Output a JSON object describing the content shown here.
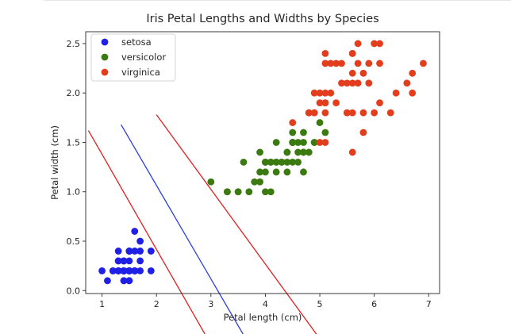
{
  "chart_data": {
    "type": "scatter",
    "title": "Iris Petal Lengths and Widths by Species",
    "xlabel": "Petal length (cm)",
    "ylabel": "Petal width (cm)",
    "xlim": [
      0.7,
      7.2
    ],
    "ylim": [
      -0.03,
      2.62
    ],
    "xticks": [
      1,
      2,
      3,
      4,
      5,
      6,
      7
    ],
    "yticks": [
      0.0,
      0.5,
      1.0,
      1.5,
      2.0,
      2.5
    ],
    "xtick_labels": [
      "1",
      "2",
      "3",
      "4",
      "5",
      "6",
      "7"
    ],
    "ytick_labels": [
      "0.0",
      "0.5",
      "1.0",
      "1.5",
      "2.0",
      "2.5"
    ],
    "grid": false,
    "legend_position": "top-left",
    "series": [
      {
        "name": "setosa",
        "color": "#1f1fe6",
        "x": [
          1.4,
          1.4,
          1.3,
          1.5,
          1.4,
          1.7,
          1.4,
          1.5,
          1.4,
          1.5,
          1.5,
          1.6,
          1.4,
          1.1,
          1.2,
          1.5,
          1.3,
          1.4,
          1.7,
          1.5,
          1.7,
          1.5,
          1.0,
          1.7,
          1.9,
          1.6,
          1.6,
          1.5,
          1.4,
          1.6,
          1.6,
          1.5,
          1.5,
          1.4,
          1.5,
          1.2,
          1.3,
          1.4,
          1.3,
          1.5,
          1.3,
          1.3,
          1.3,
          1.6,
          1.9,
          1.4,
          1.6,
          1.4,
          1.5,
          1.4
        ],
        "y": [
          0.2,
          0.2,
          0.2,
          0.2,
          0.2,
          0.4,
          0.3,
          0.2,
          0.2,
          0.1,
          0.2,
          0.2,
          0.1,
          0.1,
          0.2,
          0.4,
          0.4,
          0.3,
          0.3,
          0.3,
          0.2,
          0.4,
          0.2,
          0.5,
          0.2,
          0.2,
          0.4,
          0.2,
          0.2,
          0.2,
          0.2,
          0.4,
          0.1,
          0.2,
          0.2,
          0.2,
          0.2,
          0.1,
          0.2,
          0.2,
          0.3,
          0.3,
          0.2,
          0.6,
          0.4,
          0.3,
          0.2,
          0.2,
          0.2,
          0.2
        ]
      },
      {
        "name": "versicolor",
        "color": "#3a7a10",
        "x": [
          4.7,
          4.5,
          4.9,
          4.0,
          4.6,
          4.5,
          4.7,
          3.3,
          4.6,
          3.9,
          3.5,
          4.2,
          4.0,
          4.7,
          3.6,
          4.4,
          4.5,
          4.1,
          4.5,
          3.9,
          4.8,
          4.0,
          4.9,
          4.7,
          4.3,
          4.4,
          4.8,
          5.0,
          4.5,
          3.5,
          3.8,
          3.7,
          3.9,
          5.1,
          4.5,
          4.5,
          4.7,
          4.4,
          4.1,
          4.0,
          4.4,
          4.6,
          4.0,
          3.3,
          4.2,
          4.2,
          4.2,
          4.3,
          3.0,
          4.1
        ],
        "y": [
          1.4,
          1.5,
          1.5,
          1.3,
          1.5,
          1.3,
          1.6,
          1.0,
          1.3,
          1.4,
          1.0,
          1.5,
          1.0,
          1.4,
          1.3,
          1.4,
          1.5,
          1.0,
          1.5,
          1.1,
          1.8,
          1.3,
          1.5,
          1.2,
          1.3,
          1.4,
          1.4,
          1.7,
          1.5,
          1.0,
          1.1,
          1.0,
          1.2,
          1.6,
          1.5,
          1.6,
          1.5,
          1.3,
          1.3,
          1.3,
          1.2,
          1.4,
          1.2,
          1.0,
          1.3,
          1.2,
          1.3,
          1.3,
          1.1,
          1.3
        ]
      },
      {
        "name": "virginica",
        "color": "#e23e1e",
        "x": [
          6.0,
          5.1,
          5.9,
          5.6,
          5.8,
          6.6,
          4.5,
          6.3,
          5.8,
          6.1,
          5.1,
          5.3,
          5.5,
          5.0,
          5.1,
          5.3,
          5.5,
          6.7,
          6.9,
          5.0,
          5.7,
          4.9,
          6.7,
          4.9,
          5.7,
          6.0,
          4.8,
          4.9,
          5.6,
          5.8,
          6.1,
          6.4,
          5.6,
          5.1,
          5.6,
          6.1,
          5.6,
          5.5,
          4.8,
          5.4,
          5.6,
          5.1,
          5.1,
          5.9,
          5.7,
          5.2,
          5.0,
          5.2,
          5.4,
          5.1
        ],
        "y": [
          2.5,
          1.9,
          2.1,
          1.8,
          2.2,
          2.1,
          1.7,
          1.8,
          1.8,
          2.5,
          2.0,
          1.9,
          2.1,
          2.0,
          2.4,
          2.3,
          1.8,
          2.2,
          2.3,
          1.5,
          2.3,
          2.0,
          2.0,
          1.8,
          2.1,
          1.8,
          1.8,
          1.8,
          2.1,
          1.6,
          1.9,
          2.0,
          2.2,
          1.5,
          1.4,
          2.3,
          2.4,
          1.8,
          1.8,
          2.1,
          2.4,
          2.3,
          1.9,
          2.3,
          2.5,
          2.3,
          1.9,
          2.0,
          2.3,
          1.8
        ]
      }
    ],
    "decision_lines": [
      {
        "color": "#e02020",
        "x": [
          0.75,
          2.9
        ],
        "y": [
          1.62,
          -0.45
        ]
      },
      {
        "color": "#2a3ed8",
        "x": [
          1.35,
          3.6
        ],
        "y": [
          1.68,
          -0.45
        ]
      },
      {
        "color": "#e02020",
        "x": [
          2.0,
          4.95
        ],
        "y": [
          1.78,
          -0.45
        ]
      }
    ]
  }
}
